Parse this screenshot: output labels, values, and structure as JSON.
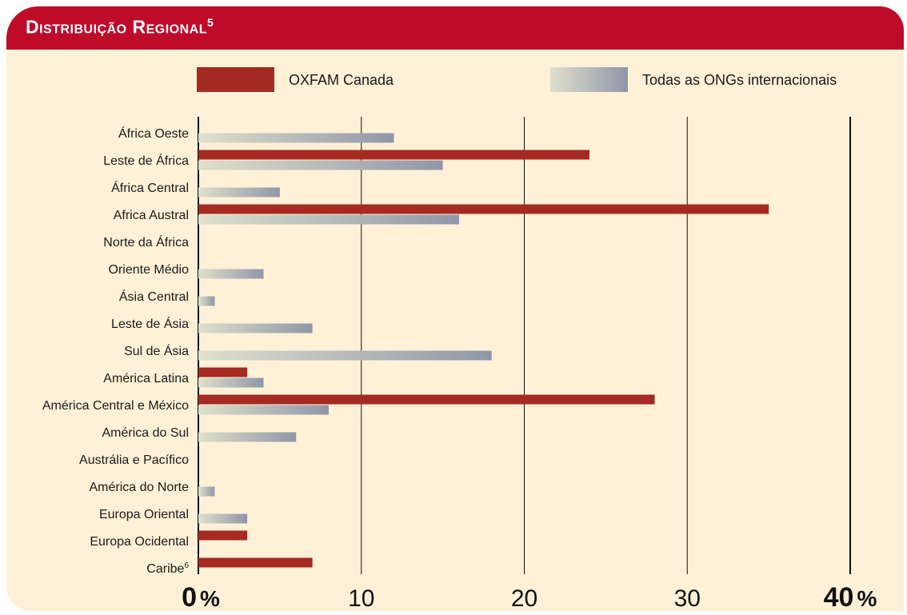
{
  "header": {
    "title": "Distribuição Regional",
    "title_sup": "5"
  },
  "colors": {
    "header": "#be0b2a",
    "panel": "#fff1d7",
    "oxfam": "#a52a22",
    "ongs_light": "#dfe0cc",
    "ongs_dark": "#8f97a8"
  },
  "chart_data": {
    "type": "bar",
    "orientation": "horizontal",
    "categories": [
      "África Oeste",
      "Leste de África",
      "África Central",
      "Africa Austral",
      "Norte da África",
      "Oriente Médio",
      "Ásia Central",
      "Leste de Ásia",
      "Sul de Ásia",
      "América Latina",
      "América Central e México",
      "América do Sul",
      "Austrália e Pacífico",
      "América do Norte",
      "Europa Oriental",
      "Europa Ocidental",
      "Caribe"
    ],
    "category_superscripts": {
      "16": "6"
    },
    "series": [
      {
        "name": "OXFAM Canada",
        "values": [
          0,
          24,
          0,
          35,
          0,
          0,
          0,
          0,
          0,
          3,
          28,
          0,
          0,
          0,
          0,
          3,
          7
        ]
      },
      {
        "name": "Todas as ONGs internacionais",
        "values": [
          12,
          15,
          5,
          16,
          0,
          4,
          1,
          7,
          18,
          4,
          8,
          6,
          0,
          1,
          3,
          0,
          0
        ]
      }
    ],
    "xlim": [
      0,
      40
    ],
    "ticks": [
      {
        "value": 0,
        "label": "0",
        "suffix": "%"
      },
      {
        "value": 10,
        "label": "10",
        "suffix": ""
      },
      {
        "value": 20,
        "label": "20",
        "suffix": ""
      },
      {
        "value": 30,
        "label": "30",
        "suffix": ""
      },
      {
        "value": 40,
        "label": "40",
        "suffix": "%"
      }
    ],
    "grid": true,
    "legend_position": "top"
  }
}
